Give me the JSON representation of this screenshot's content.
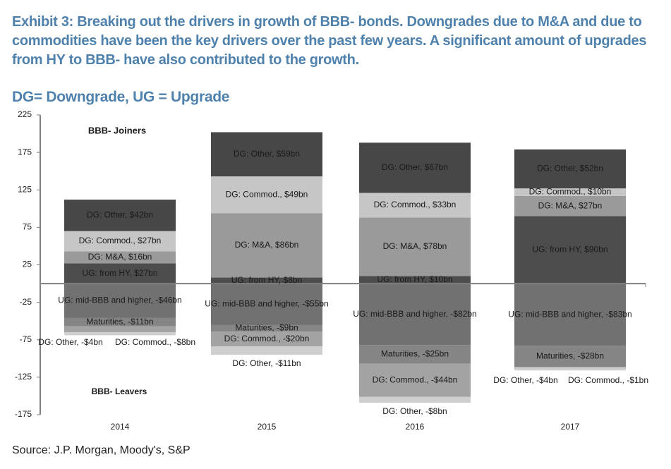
{
  "title": "Exhibit 3: Breaking out the drivers in growth of BBB- bonds.  Downgrades due to M&A and due to commodities have been the key drivers over the past few years.  A significant amount of upgrades from HY to BBB- have also contributed to the growth.",
  "subtitle": "DG= Downgrade, UG = Upgrade",
  "source": "Source: J.P. Morgan, Moody's, S&P",
  "chart_data": {
    "type": "bar",
    "stacked": true,
    "title": "",
    "xlabel": "",
    "ylabel": "",
    "ylim": [
      -175,
      225
    ],
    "yticks": [
      225,
      175,
      125,
      75,
      25,
      -25,
      -75,
      -125,
      -175
    ],
    "categories": [
      "2014",
      "2015",
      "2016",
      "2017"
    ],
    "annotations": {
      "joiners": "BBB- Joiners",
      "leavers": "BBB- Leavers"
    },
    "colors": {
      "UG: from HY": "#4d4d4d",
      "DG: M&A": "#9a9a9a",
      "DG: Commod.": "#c6c6c6",
      "DG: Other": "#474747",
      "UG: mid-BBB and higher": "#717171",
      "Maturities": "#858585",
      "DG: Commod. (leaver)": "#a3a3a3",
      "DG: Other (leaver)": "#cfcfcf"
    },
    "series_positive": [
      {
        "name": "UG: from HY",
        "values": [
          27,
          8,
          10,
          90
        ],
        "labels": [
          "UG: from HY, $27bn",
          "UG: from HY, $8bn",
          "UG: from HY, $10bn",
          "UG: from HY, $90bn"
        ]
      },
      {
        "name": "DG: M&A",
        "values": [
          16,
          86,
          78,
          27
        ],
        "labels": [
          "DG: M&A, $16bn",
          "DG: M&A, $86bn",
          "DG: M&A, $78bn",
          "DG: M&A, $27bn"
        ]
      },
      {
        "name": "DG: Commod.",
        "values": [
          27,
          49,
          33,
          10
        ],
        "labels": [
          "DG: Commod., $27bn",
          "DG: Commod., $49bn",
          "DG: Commod., $33bn",
          "DG: Commod., $10bn"
        ]
      },
      {
        "name": "DG: Other",
        "values": [
          42,
          59,
          67,
          52
        ],
        "labels": [
          "DG: Other, $42bn",
          "DG: Other, $59bn",
          "DG: Other, $67bn",
          "DG: Other, $52bn"
        ]
      }
    ],
    "series_negative": [
      {
        "name": "UG: mid-BBB and higher",
        "values": [
          -46,
          -55,
          -82,
          -83
        ],
        "labels": [
          "UG: mid-BBB and higher, -$46bn",
          "UG: mid-BBB and higher, -$55bn",
          "UG: mid-BBB and higher, -$82bn",
          "UG: mid-BBB and higher, -$83bn"
        ]
      },
      {
        "name": "Maturities",
        "values": [
          -11,
          -9,
          -25,
          -28
        ],
        "labels": [
          "Maturities, -$11bn",
          "Maturities, -$9bn",
          "Maturities, -$25bn",
          "Maturities, -$28bn"
        ]
      },
      {
        "name": "DG: Commod. (leaver)",
        "values": [
          -8,
          -20,
          -44,
          -1
        ],
        "labels": [
          "DG: Commod., -$8bn",
          "DG: Commod., -$20bn",
          "DG: Commod., -$44bn",
          "DG: Commod., -$1bn"
        ]
      },
      {
        "name": "DG: Other (leaver)",
        "values": [
          -4,
          -11,
          -8,
          -4
        ],
        "labels": [
          "DG: Other, -$4bn",
          "DG: Other, -$11bn",
          "DG: Other, -$8bn",
          "DG: Other, -$4bn"
        ]
      }
    ]
  }
}
